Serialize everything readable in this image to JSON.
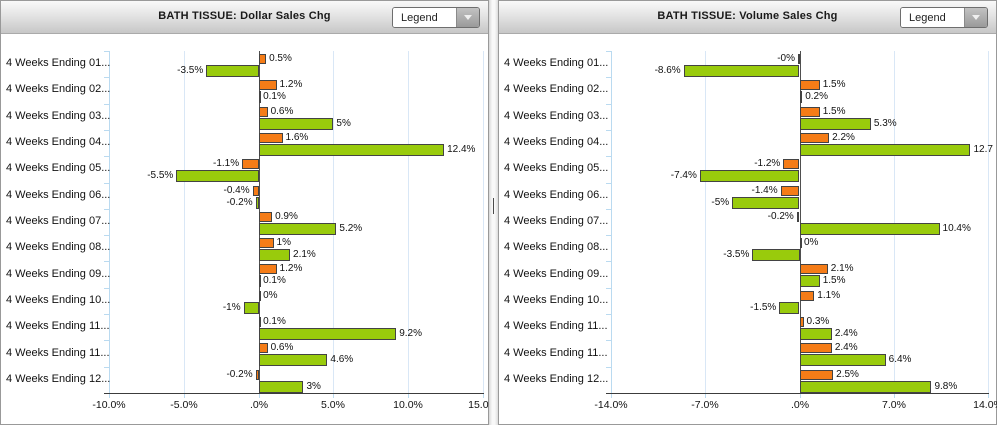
{
  "ui": {
    "legend_label": "Legend"
  },
  "colors": {
    "orange_series": "#f57c17",
    "green_series": "#99cb0c",
    "bar_border": "#434343",
    "gridline": "#d9e7f6",
    "axis_line": "#3c3c3c"
  },
  "chart_data": [
    {
      "type": "bar",
      "orientation": "horizontal",
      "title": "BATH TISSUE: Dollar Sales Chg",
      "legend_position": "collapsed-dropdown",
      "grid": true,
      "xlim": [
        -10,
        15
      ],
      "tick_values": [
        -10,
        -5,
        0,
        5,
        10,
        15
      ],
      "tick_labels": [
        "-10.0%",
        "-5.0%",
        ".0%",
        "5.0%",
        "10.0%",
        "15.0%"
      ],
      "categories": [
        "4 Weeks Ending 01...",
        "4 Weeks Ending 02...",
        "4 Weeks Ending 03...",
        "4 Weeks Ending 04...",
        "4 Weeks Ending 05...",
        "4 Weeks Ending 06...",
        "4 Weeks Ending 07...",
        "4 Weeks Ending 08...",
        "4 Weeks Ending 09...",
        "4 Weeks Ending 10...",
        "4 Weeks Ending 11...",
        "4 Weeks Ending 11...",
        "4 Weeks Ending 12..."
      ],
      "series": [
        {
          "name": "orange-series",
          "color": "#f57c17",
          "values": [
            0.5,
            1.2,
            0.6,
            1.6,
            -1.1,
            -0.4,
            0.9,
            1,
            1.2,
            0,
            0.1,
            0.6,
            -0.2
          ],
          "labels": [
            "0.5%",
            "1.2%",
            "0.6%",
            "1.6%",
            "-1.1%",
            "-0.4%",
            "0.9%",
            "1%",
            "1.2%",
            "0%",
            "0.1%",
            "0.6%",
            "-0.2%"
          ]
        },
        {
          "name": "green-series",
          "color": "#99cb0c",
          "values": [
            -3.5,
            0.1,
            5,
            12.4,
            -5.5,
            -0.2,
            5.2,
            2.1,
            0.1,
            -1,
            9.2,
            4.6,
            3
          ],
          "labels": [
            "-3.5%",
            "0.1%",
            "5%",
            "12.4%",
            "-5.5%",
            "-0.2%",
            "5.2%",
            "2.1%",
            "0.1%",
            "-1%",
            "9.2%",
            "4.6%",
            "3%"
          ]
        }
      ]
    },
    {
      "type": "bar",
      "orientation": "horizontal",
      "title": "BATH TISSUE: Volume Sales Chg",
      "legend_position": "collapsed-dropdown",
      "grid": true,
      "xlim": [
        -14,
        14
      ],
      "tick_values": [
        -14,
        -7,
        0,
        7,
        14
      ],
      "tick_labels": [
        "-14.0%",
        "-7.0%",
        ".0%",
        "7.0%",
        "14.0%"
      ],
      "categories": [
        "4 Weeks Ending 01...",
        "4 Weeks Ending 02...",
        "4 Weeks Ending 03...",
        "4 Weeks Ending 04...",
        "4 Weeks Ending 05...",
        "4 Weeks Ending 06...",
        "4 Weeks Ending 07...",
        "4 Weeks Ending 08...",
        "4 Weeks Ending 09...",
        "4 Weeks Ending 10...",
        "4 Weeks Ending 11...",
        "4 Weeks Ending 11...",
        "4 Weeks Ending 12..."
      ],
      "series": [
        {
          "name": "orange-series",
          "color": "#f57c17",
          "values": [
            -0.0,
            1.5,
            1.5,
            2.2,
            -1.2,
            -1.4,
            -0.2,
            0,
            2.1,
            1.1,
            0.3,
            2.4,
            2.5
          ],
          "labels": [
            "-0%",
            "1.5%",
            "1.5%",
            "2.2%",
            "-1.2%",
            "-1.4%",
            "-0.2%",
            "0%",
            "2.1%",
            "1.1%",
            "0.3%",
            "2.4%",
            "2.5%"
          ]
        },
        {
          "name": "green-series",
          "color": "#99cb0c",
          "values": [
            -8.6,
            0.2,
            5.3,
            12.7,
            -7.4,
            -5,
            10.4,
            -3.5,
            1.5,
            -1.5,
            2.4,
            6.4,
            9.8
          ],
          "labels": [
            "-8.6%",
            "0.2%",
            "5.3%",
            "12.7",
            "-7.4%",
            "-5%",
            "10.4%",
            "-3.5%",
            "1.5%",
            "-1.5%",
            "2.4%",
            "6.4%",
            "9.8%"
          ]
        }
      ]
    }
  ]
}
